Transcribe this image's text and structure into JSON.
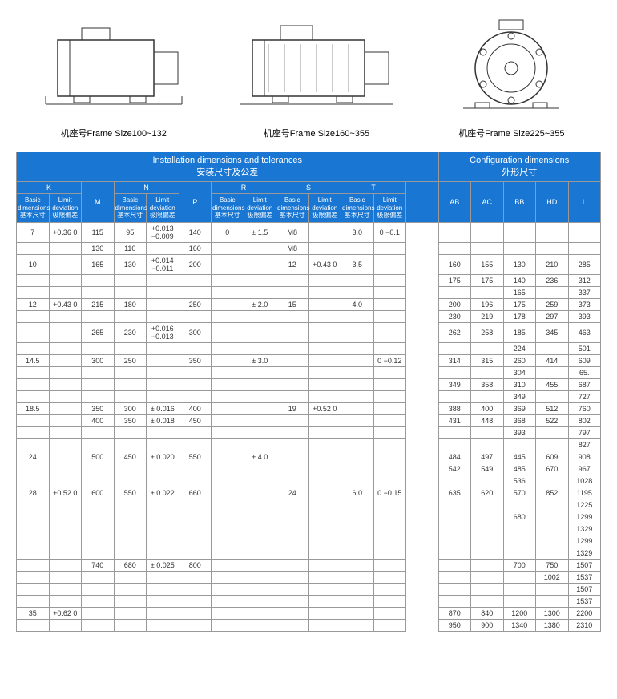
{
  "captions": {
    "c1": "机座号Frame Size100~132",
    "c2": "机座号Frame Size160~355",
    "c3": "机座号Frame Size225~355"
  },
  "header": {
    "top_left": "Installation dimensions and tolerances",
    "top_left_cn": "安装尺寸及公差",
    "top_right": "Configuration dimensions",
    "top_right_cn": "外形尺寸",
    "cols": {
      "K": "K",
      "M": "M",
      "N": "N",
      "P": "P",
      "R": "R",
      "S": "S",
      "T": "T",
      "AB": "AB",
      "AC": "AC",
      "BB": "BB",
      "HD": "HD",
      "L": "L"
    },
    "basic": "Basic dimensions",
    "basic_cn": "基本尺寸",
    "limit": "Limit deviation",
    "limit_cn": "极限偏差"
  },
  "colors": {
    "header_bg": "#1976d2",
    "header_fg": "#ffffff",
    "border": "#999999"
  },
  "rows": [
    {
      "K": "7",
      "Kd": "+0.36 0",
      "M": "115",
      "N": "95",
      "Nd": "+0.013 −0.009",
      "P": "140",
      "R": "0",
      "Rd": "± 1.5",
      "S": "M8",
      "Sd": "",
      "T": "3.0",
      "Td": "0 −0.1",
      "AB": "",
      "AC": "",
      "BB": "",
      "HD": "",
      "L": ""
    },
    {
      "K": "",
      "Kd": "",
      "M": "130",
      "N": "110",
      "Nd": "",
      "P": "160",
      "R": "",
      "Rd": "",
      "S": "M8",
      "Sd": "",
      "T": "",
      "Td": "",
      "AB": "",
      "AC": "",
      "BB": "",
      "HD": "",
      "L": ""
    },
    {
      "K": "10",
      "Kd": "",
      "M": "165",
      "N": "130",
      "Nd": "+0.014 −0.011",
      "P": "200",
      "R": "",
      "Rd": "",
      "S": "12",
      "Sd": "+0.43 0",
      "T": "3.5",
      "Td": "",
      "AB": "160",
      "AC": "155",
      "BB": "130",
      "HD": "210",
      "L": "285"
    },
    {
      "K": "",
      "Kd": "",
      "M": "",
      "N": "",
      "Nd": "",
      "P": "",
      "R": "",
      "Rd": "",
      "S": "",
      "Sd": "",
      "T": "",
      "Td": "",
      "AB": "175",
      "AC": "175",
      "BB": "140",
      "HD": "236",
      "L": "312"
    },
    {
      "K": "",
      "Kd": "",
      "M": "",
      "N": "",
      "Nd": "",
      "P": "",
      "R": "",
      "Rd": "",
      "S": "",
      "Sd": "",
      "T": "",
      "Td": "",
      "AB": "",
      "AC": "",
      "BB": "165",
      "HD": "",
      "L": "337"
    },
    {
      "K": "12",
      "Kd": "+0.43 0",
      "M": "215",
      "N": "180",
      "Nd": "",
      "P": "250",
      "R": "",
      "Rd": "± 2.0",
      "S": "15",
      "Sd": "",
      "T": "4.0",
      "Td": "",
      "AB": "200",
      "AC": "196",
      "BB": "175",
      "HD": "259",
      "L": "373"
    },
    {
      "K": "",
      "Kd": "",
      "M": "",
      "N": "",
      "Nd": "",
      "P": "",
      "R": "",
      "Rd": "",
      "S": "",
      "Sd": "",
      "T": "",
      "Td": "",
      "AB": "230",
      "AC": "219",
      "BB": "178",
      "HD": "297",
      "L": "393"
    },
    {
      "K": "",
      "Kd": "",
      "M": "265",
      "N": "230",
      "Nd": "+0.016 −0.013",
      "P": "300",
      "R": "",
      "Rd": "",
      "S": "",
      "Sd": "",
      "T": "",
      "Td": "",
      "AB": "262",
      "AC": "258",
      "BB": "185",
      "HD": "345",
      "L": "463"
    },
    {
      "K": "",
      "Kd": "",
      "M": "",
      "N": "",
      "Nd": "",
      "P": "",
      "R": "",
      "Rd": "",
      "S": "",
      "Sd": "",
      "T": "",
      "Td": "",
      "AB": "",
      "AC": "",
      "BB": "224",
      "HD": "",
      "L": "501"
    },
    {
      "K": "14.5",
      "Kd": "",
      "M": "300",
      "N": "250",
      "Nd": "",
      "P": "350",
      "R": "",
      "Rd": "± 3.0",
      "S": "",
      "Sd": "",
      "T": "",
      "Td": "0 −0.12",
      "AB": "314",
      "AC": "315",
      "BB": "260",
      "HD": "414",
      "L": "609"
    },
    {
      "K": "",
      "Kd": "",
      "M": "",
      "N": "",
      "Nd": "",
      "P": "",
      "R": "",
      "Rd": "",
      "S": "",
      "Sd": "",
      "T": "",
      "Td": "",
      "AB": "",
      "AC": "",
      "BB": "304",
      "HD": "",
      "L": "65."
    },
    {
      "K": "",
      "Kd": "",
      "M": "",
      "N": "",
      "Nd": "",
      "P": "",
      "R": "",
      "Rd": "",
      "S": "",
      "Sd": "",
      "T": "",
      "Td": "",
      "AB": "349",
      "AC": "358",
      "BB": "310",
      "HD": "455",
      "L": "687"
    },
    {
      "K": "",
      "Kd": "",
      "M": "",
      "N": "",
      "Nd": "",
      "P": "",
      "R": "",
      "Rd": "",
      "S": "",
      "Sd": "",
      "T": "",
      "Td": "",
      "AB": "",
      "AC": "",
      "BB": "349",
      "HD": "",
      "L": "727"
    },
    {
      "K": "18.5",
      "Kd": "",
      "M": "350",
      "N": "300",
      "Nd": "± 0.016",
      "P": "400",
      "R": "",
      "Rd": "",
      "S": "19",
      "Sd": "+0.52 0",
      "T": "",
      "Td": "",
      "AB": "388",
      "AC": "400",
      "BB": "369",
      "HD": "512",
      "L": "760"
    },
    {
      "K": "",
      "Kd": "",
      "M": "400",
      "N": "350",
      "Nd": "± 0.018",
      "P": "450",
      "R": "",
      "Rd": "",
      "S": "",
      "Sd": "",
      "T": "",
      "Td": "",
      "AB": "431",
      "AC": "448",
      "BB": "368",
      "HD": "522",
      "L": "802"
    },
    {
      "K": "",
      "Kd": "",
      "M": "",
      "N": "",
      "Nd": "",
      "P": "",
      "R": "",
      "Rd": "",
      "S": "",
      "Sd": "",
      "T": "",
      "Td": "",
      "AB": "",
      "AC": "",
      "BB": "393",
      "HD": "",
      "L": "797"
    },
    {
      "K": "",
      "Kd": "",
      "M": "",
      "N": "",
      "Nd": "",
      "P": "",
      "R": "",
      "Rd": "",
      "S": "",
      "Sd": "",
      "T": "",
      "Td": "",
      "AB": "",
      "AC": "",
      "BB": "",
      "HD": "",
      "L": "827"
    },
    {
      "K": "24",
      "Kd": "",
      "M": "500",
      "N": "450",
      "Nd": "± 0.020",
      "P": "550",
      "R": "",
      "Rd": "± 4.0",
      "S": "",
      "Sd": "",
      "T": "",
      "Td": "",
      "AB": "484",
      "AC": "497",
      "BB": "445",
      "HD": "609",
      "L": "908"
    },
    {
      "K": "",
      "Kd": "",
      "M": "",
      "N": "",
      "Nd": "",
      "P": "",
      "R": "",
      "Rd": "",
      "S": "",
      "Sd": "",
      "T": "",
      "Td": "",
      "AB": "542",
      "AC": "549",
      "BB": "485",
      "HD": "670",
      "L": "967"
    },
    {
      "K": "",
      "Kd": "",
      "M": "",
      "N": "",
      "Nd": "",
      "P": "",
      "R": "",
      "Rd": "",
      "S": "",
      "Sd": "",
      "T": "",
      "Td": "",
      "AB": "",
      "AC": "",
      "BB": "536",
      "HD": "",
      "L": "1028"
    },
    {
      "K": "28",
      "Kd": "+0.52 0",
      "M": "600",
      "N": "550",
      "Nd": "± 0.022",
      "P": "660",
      "R": "",
      "Rd": "",
      "S": "24",
      "Sd": "",
      "T": "6.0",
      "Td": "0 −0.15",
      "AB": "635",
      "AC": "620",
      "BB": "570",
      "HD": "852",
      "L": "1195"
    },
    {
      "K": "",
      "Kd": "",
      "M": "",
      "N": "",
      "Nd": "",
      "P": "",
      "R": "",
      "Rd": "",
      "S": "",
      "Sd": "",
      "T": "",
      "Td": "",
      "AB": "",
      "AC": "",
      "BB": "",
      "HD": "",
      "L": "1225"
    },
    {
      "K": "",
      "Kd": "",
      "M": "",
      "N": "",
      "Nd": "",
      "P": "",
      "R": "",
      "Rd": "",
      "S": "",
      "Sd": "",
      "T": "",
      "Td": "",
      "AB": "",
      "AC": "",
      "BB": "680",
      "HD": "",
      "L": "1299"
    },
    {
      "K": "",
      "Kd": "",
      "M": "",
      "N": "",
      "Nd": "",
      "P": "",
      "R": "",
      "Rd": "",
      "S": "",
      "Sd": "",
      "T": "",
      "Td": "",
      "AB": "",
      "AC": "",
      "BB": "",
      "HD": "",
      "L": "1329"
    },
    {
      "K": "",
      "Kd": "",
      "M": "",
      "N": "",
      "Nd": "",
      "P": "",
      "R": "",
      "Rd": "",
      "S": "",
      "Sd": "",
      "T": "",
      "Td": "",
      "AB": "",
      "AC": "",
      "BB": "",
      "HD": "",
      "L": "1299"
    },
    {
      "K": "",
      "Kd": "",
      "M": "",
      "N": "",
      "Nd": "",
      "P": "",
      "R": "",
      "Rd": "",
      "S": "",
      "Sd": "",
      "T": "",
      "Td": "",
      "AB": "",
      "AC": "",
      "BB": "",
      "HD": "",
      "L": "1329"
    },
    {
      "K": "",
      "Kd": "",
      "M": "740",
      "N": "680",
      "Nd": "± 0.025",
      "P": "800",
      "R": "",
      "Rd": "",
      "S": "",
      "Sd": "",
      "T": "",
      "Td": "",
      "AB": "",
      "AC": "",
      "BB": "700",
      "HD": "750",
      "L": "1507"
    },
    {
      "K": "",
      "Kd": "",
      "M": "",
      "N": "",
      "Nd": "",
      "P": "",
      "R": "",
      "Rd": "",
      "S": "",
      "Sd": "",
      "T": "",
      "Td": "",
      "AB": "",
      "AC": "",
      "BB": "",
      "HD": "1002",
      "L": "1537"
    },
    {
      "K": "",
      "Kd": "",
      "M": "",
      "N": "",
      "Nd": "",
      "P": "",
      "R": "",
      "Rd": "",
      "S": "",
      "Sd": "",
      "T": "",
      "Td": "",
      "AB": "",
      "AC": "",
      "BB": "",
      "HD": "",
      "L": "1507"
    },
    {
      "K": "",
      "Kd": "",
      "M": "",
      "N": "",
      "Nd": "",
      "P": "",
      "R": "",
      "Rd": "",
      "S": "",
      "Sd": "",
      "T": "",
      "Td": "",
      "AB": "",
      "AC": "",
      "BB": "",
      "HD": "",
      "L": "1537"
    },
    {
      "K": "35",
      "Kd": "+0.62 0",
      "M": "",
      "N": "",
      "Nd": "",
      "P": "",
      "R": "",
      "Rd": "",
      "S": "",
      "Sd": "",
      "T": "",
      "Td": "",
      "AB": "870",
      "AC": "840",
      "BB": "1200",
      "HD": "1300",
      "L": "2200"
    },
    {
      "K": "",
      "Kd": "",
      "M": "",
      "N": "",
      "Nd": "",
      "P": "",
      "R": "",
      "Rd": "",
      "S": "",
      "Sd": "",
      "T": "",
      "Td": "",
      "AB": "950",
      "AC": "900",
      "BB": "1340",
      "HD": "1380",
      "L": "2310"
    }
  ]
}
